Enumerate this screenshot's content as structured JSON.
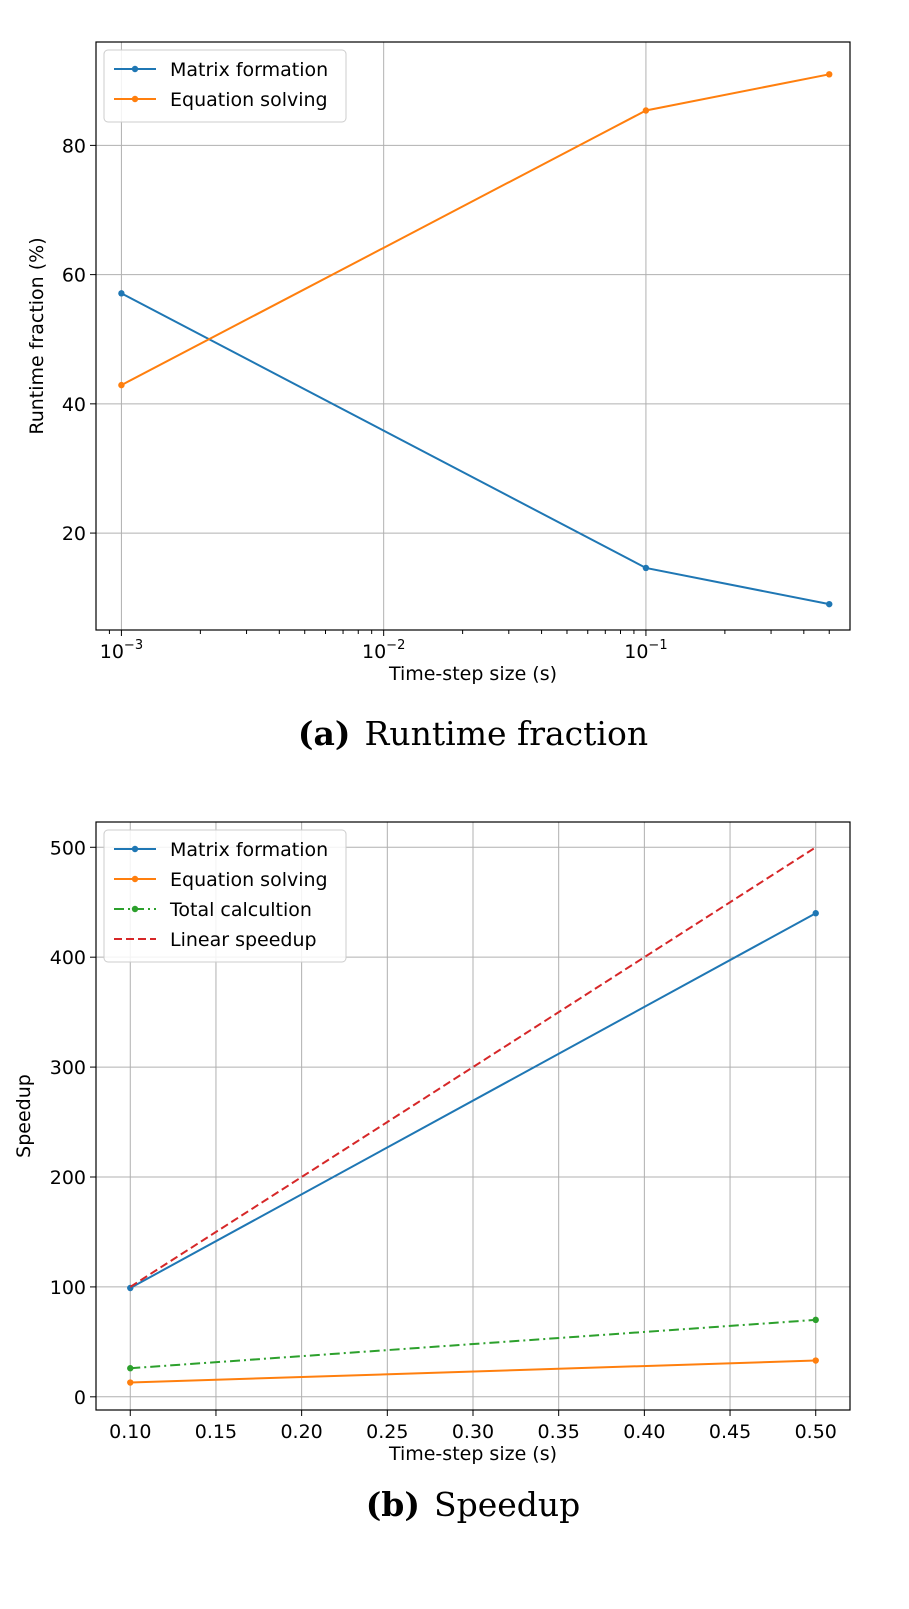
{
  "chart_data": [
    {
      "type": "line",
      "x_scale": "log",
      "x": [
        0.001,
        0.1,
        0.5
      ],
      "xlim": [
        0.0008,
        0.6
      ],
      "ylim": [
        5,
        96
      ],
      "x_ticks": [
        {
          "value": 0.001,
          "label_base": "10",
          "label_exp": "−3"
        },
        {
          "value": 0.01,
          "label_base": "10",
          "label_exp": "−2"
        },
        {
          "value": 0.1,
          "label_base": "10",
          "label_exp": "−1"
        }
      ],
      "y_ticks": [
        {
          "value": 20,
          "label": "20"
        },
        {
          "value": 40,
          "label": "40"
        },
        {
          "value": 60,
          "label": "60"
        },
        {
          "value": 80,
          "label": "80"
        }
      ],
      "xlabel": "Time-step size (s)",
      "ylabel": "Runtime fraction (%)",
      "grid": true,
      "legend_position": "top-left",
      "series": [
        {
          "name": "Matrix formation",
          "values": [
            57.1,
            14.6,
            9.0
          ],
          "color": "#1f77b4",
          "dash": "solid"
        },
        {
          "name": "Equation solving",
          "values": [
            42.9,
            85.4,
            91.0
          ],
          "color": "#ff7f0e",
          "dash": "solid"
        }
      ],
      "caption_letter": "(a)",
      "caption_text": "Runtime fraction"
    },
    {
      "type": "line",
      "x_scale": "linear",
      "x": [
        0.1,
        0.5
      ],
      "xlim": [
        0.08,
        0.52
      ],
      "ylim": [
        -12,
        523
      ],
      "x_ticks": [
        {
          "value": 0.1,
          "label": "0.10"
        },
        {
          "value": 0.15,
          "label": "0.15"
        },
        {
          "value": 0.2,
          "label": "0.20"
        },
        {
          "value": 0.25,
          "label": "0.25"
        },
        {
          "value": 0.3,
          "label": "0.30"
        },
        {
          "value": 0.35,
          "label": "0.35"
        },
        {
          "value": 0.4,
          "label": "0.40"
        },
        {
          "value": 0.45,
          "label": "0.45"
        },
        {
          "value": 0.5,
          "label": "0.50"
        }
      ],
      "y_ticks": [
        {
          "value": 0,
          "label": "0"
        },
        {
          "value": 100,
          "label": "100"
        },
        {
          "value": 200,
          "label": "200"
        },
        {
          "value": 300,
          "label": "300"
        },
        {
          "value": 400,
          "label": "400"
        },
        {
          "value": 500,
          "label": "500"
        }
      ],
      "xlabel": "Time-step size (s)",
      "ylabel": "Speedup",
      "grid": true,
      "legend_position": "top-left",
      "series": [
        {
          "name": "Matrix formation",
          "values": [
            99,
            440
          ],
          "color": "#1f77b4",
          "dash": "solid",
          "markers": true
        },
        {
          "name": "Equation solving",
          "values": [
            13,
            33
          ],
          "color": "#ff7f0e",
          "dash": "solid",
          "markers": true
        },
        {
          "name": "Total calcultion",
          "values": [
            26,
            70
          ],
          "color": "#2ca02c",
          "dash": "dashdot",
          "markers": true
        },
        {
          "name": "Linear speedup",
          "values": [
            100,
            500
          ],
          "color": "#d62728",
          "dash": "dashed",
          "markers": false
        }
      ],
      "caption_letter": "(b)",
      "caption_text": "Speedup"
    }
  ]
}
